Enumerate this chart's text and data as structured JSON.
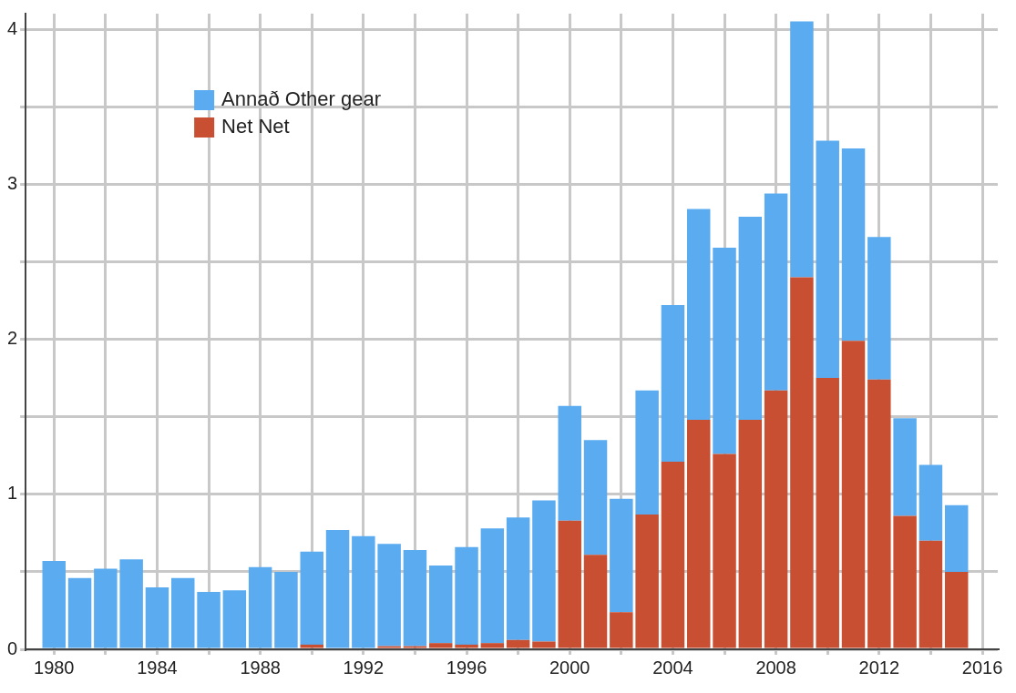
{
  "chart_data": {
    "type": "bar",
    "stacked": true,
    "x": [
      1980,
      1981,
      1982,
      1983,
      1984,
      1985,
      1986,
      1987,
      1988,
      1989,
      1990,
      1991,
      1992,
      1993,
      1994,
      1995,
      1996,
      1997,
      1998,
      1999,
      2000,
      2001,
      2002,
      2003,
      2004,
      2005,
      2006,
      2007,
      2008,
      2009,
      2010,
      2011,
      2012,
      2013,
      2014,
      2015
    ],
    "series": [
      {
        "name": "Net Net",
        "color": "#c84f32",
        "values": [
          0,
          0,
          0,
          0,
          0,
          0,
          0,
          0,
          0,
          0,
          0.03,
          0,
          0,
          0.02,
          0.02,
          0.04,
          0.03,
          0.04,
          0.06,
          0.05,
          0.83,
          0.61,
          0.24,
          0.87,
          1.21,
          1.48,
          1.26,
          1.48,
          1.67,
          2.4,
          1.75,
          1.99,
          1.74,
          0.86,
          0.7,
          0.5
        ]
      },
      {
        "name": "Annað Other gear",
        "color": "#5aabf0",
        "values": [
          0.57,
          0.46,
          0.52,
          0.58,
          0.4,
          0.46,
          0.37,
          0.38,
          0.53,
          0.5,
          0.6,
          0.77,
          0.73,
          0.66,
          0.62,
          0.5,
          0.63,
          0.74,
          0.79,
          0.91,
          0.74,
          0.74,
          0.73,
          0.8,
          1.01,
          1.36,
          1.33,
          1.31,
          1.27,
          1.65,
          1.53,
          1.24,
          0.92,
          0.63,
          0.49,
          0.43
        ]
      }
    ],
    "xlim": [
      1978.9,
      2016.6
    ],
    "xticks": [
      1980,
      {
        "value": 1982,
        "label": null
      },
      1984,
      {
        "value": 1986,
        "label": null
      },
      1988,
      {
        "value": 1990,
        "label": null
      },
      1992,
      {
        "value": 1994,
        "label": null
      },
      1996,
      {
        "value": 1998,
        "label": null
      },
      2000,
      {
        "value": 2002,
        "label": null
      },
      2004,
      {
        "value": 2006,
        "label": null
      },
      2008,
      {
        "value": 2010,
        "label": null
      },
      2012,
      {
        "value": 2014,
        "label": null
      },
      2016
    ],
    "ylim": [
      0,
      4.1
    ],
    "yticks": [
      0,
      {
        "value": 0.5,
        "label": null
      },
      1,
      {
        "value": 1.5,
        "label": null
      },
      2,
      {
        "value": 2.5,
        "label": null
      },
      3,
      {
        "value": 3.5,
        "label": null
      },
      4
    ],
    "grid": true,
    "legend": "top left"
  }
}
